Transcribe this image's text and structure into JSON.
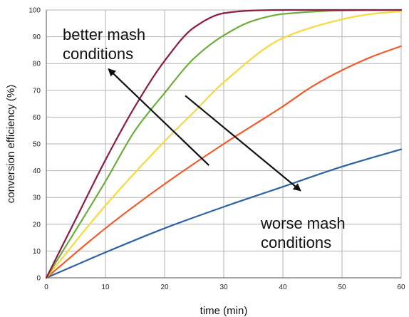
{
  "chart_data": {
    "type": "line",
    "title": "",
    "xlabel": "time (min)",
    "ylabel": "conversion efficiency (%)",
    "xlim": [
      0,
      60
    ],
    "ylim": [
      0,
      100
    ],
    "xticks": [
      0,
      10,
      20,
      30,
      40,
      50,
      60
    ],
    "yticks": [
      0,
      10,
      20,
      30,
      40,
      50,
      60,
      70,
      80,
      90,
      100
    ],
    "grid": true,
    "legend": "none",
    "series": [
      {
        "color": "#2b63a6",
        "x": [
          0,
          10,
          20,
          30,
          40,
          50,
          60
        ],
        "values": [
          0,
          9.5,
          18.5,
          26.5,
          34,
          41.5,
          48
        ]
      },
      {
        "color": "#f25a2a",
        "x": [
          0,
          10,
          20,
          30,
          40,
          45,
          50,
          55,
          60
        ],
        "values": [
          0,
          18.5,
          35,
          50,
          64,
          71.5,
          77.5,
          82.5,
          86.5
        ]
      },
      {
        "color": "#f8d83a",
        "x": [
          0,
          10,
          20,
          25,
          30,
          40,
          50,
          55,
          60
        ],
        "values": [
          0,
          27,
          51,
          62,
          73,
          89.5,
          96.5,
          98.5,
          99.5
        ]
      },
      {
        "color": "#6aaf3c",
        "x": [
          0,
          10,
          15,
          20,
          25,
          30,
          35,
          40,
          50,
          60
        ],
        "values": [
          0,
          36,
          55,
          69,
          82,
          90.5,
          96,
          98.5,
          99.8,
          100
        ]
      },
      {
        "color": "#8b1c42",
        "x": [
          0,
          5,
          10,
          15,
          20,
          25,
          30,
          35,
          40,
          60
        ],
        "values": [
          0,
          22,
          44,
          64,
          81,
          93.5,
          98.8,
          99.8,
          100,
          100
        ]
      }
    ],
    "annotations": [
      {
        "text": "better mash\nconditions",
        "arrow": {
          "from": [
            27.5,
            42
          ],
          "to": [
            10.5,
            78
          ]
        }
      },
      {
        "text": "worse mash\nconditions",
        "arrow": {
          "from": [
            23.5,
            68
          ],
          "to": [
            43,
            32.5
          ]
        }
      }
    ]
  }
}
